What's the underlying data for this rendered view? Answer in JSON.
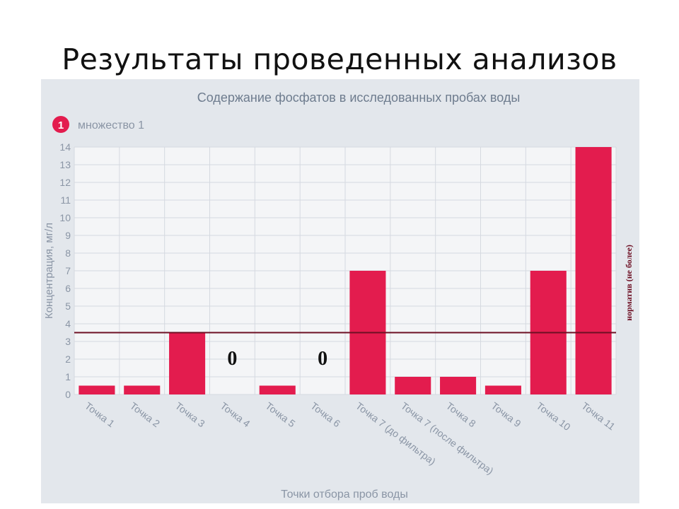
{
  "slide": {
    "title": "Результаты проведенных анализов"
  },
  "chart_data": {
    "type": "bar",
    "title": "Содержание фосфатов в исследованных пробах воды",
    "legend": {
      "badge": "1",
      "label": "множество 1",
      "position": "top-left"
    },
    "xlabel": "Точки отбора проб воды",
    "ylabel": "Концентрация, мг/л",
    "ylim": [
      0,
      14
    ],
    "yticks": [
      0,
      1,
      2,
      3,
      4,
      5,
      6,
      7,
      8,
      9,
      10,
      11,
      12,
      13,
      14
    ],
    "grid": true,
    "categories": [
      "Точка 1",
      "Точка 2",
      "Точка 3",
      "Точка 4",
      "Точка 5",
      "Точка 6",
      "Точка 7 (до фильтра)",
      "Точка 7 (после фильтра)",
      "Точка 8",
      "Точка 9",
      "Точка 10",
      "Точка 11"
    ],
    "series": [
      {
        "name": "множество 1",
        "values": [
          0.5,
          0.5,
          3.5,
          0,
          0.5,
          0,
          7,
          1,
          1,
          0.5,
          7,
          14
        ]
      }
    ],
    "zero_labels": [
      {
        "category": "Точка 4",
        "text": "0"
      },
      {
        "category": "Точка 6",
        "text": "0"
      }
    ],
    "reference_line": {
      "value": 3.5,
      "label": "норматив (не более)"
    }
  },
  "colors": {
    "bar": "#e31c4e",
    "reference_line": "#6d0f23",
    "panel_background": "#e3e7ec",
    "plot_background": "#f4f5f7",
    "grid": "#d5d9e0",
    "axis_text": "#8a95a5",
    "chart_title": "#6e7c8e"
  }
}
